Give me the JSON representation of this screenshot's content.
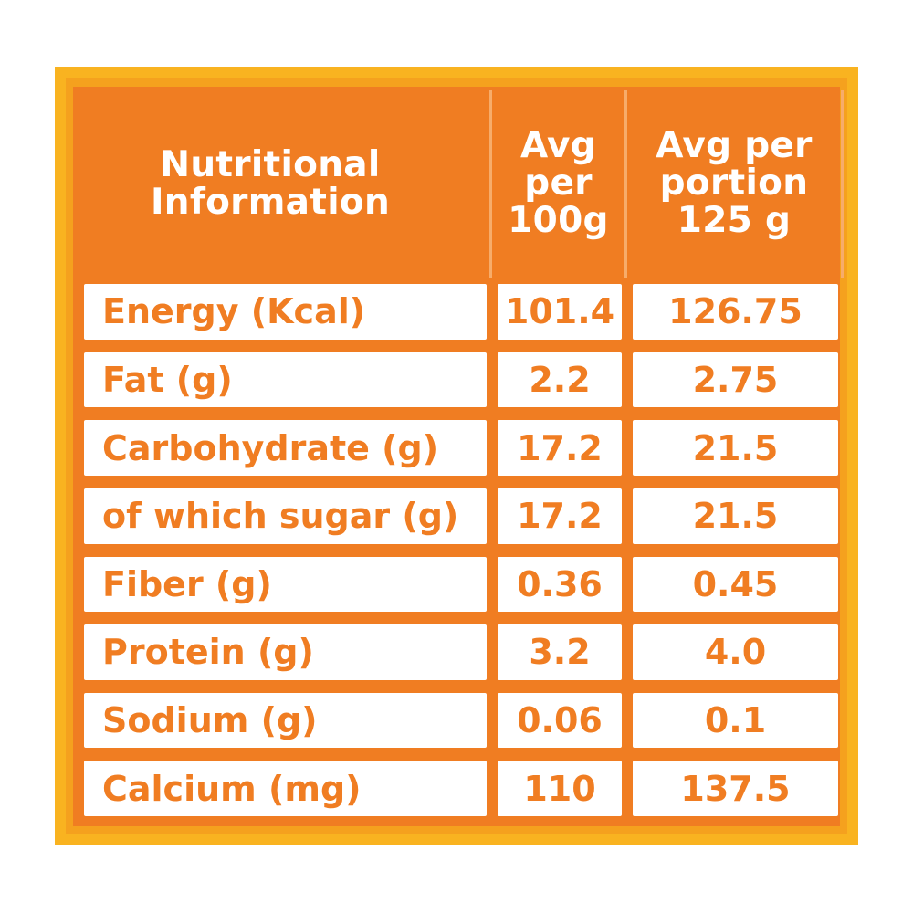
{
  "table": {
    "headers": [
      "Nutritional\nInformation",
      "Avg\nper\n100g",
      "Avg per\nportion\n125 g"
    ],
    "rows": [
      [
        "Energy (Kcal)",
        "101.4",
        "126.75"
      ],
      [
        "Fat (g)",
        "2.2",
        "2.75"
      ],
      [
        "Carbohydrate (g)",
        "17.2",
        "21.5"
      ],
      [
        "of which sugar (g)",
        "17.2",
        "21.5"
      ],
      [
        "Fiber (g)",
        "0.36",
        "0.45"
      ],
      [
        "Protein (g)",
        "3.2",
        "4.0"
      ],
      [
        "Sodium (g)",
        "0.06",
        "0.1"
      ],
      [
        "Calcium (mg)",
        "110",
        "137.5"
      ]
    ]
  },
  "colors": {
    "accent": "#f07d22",
    "frame": "#f5a11e"
  }
}
